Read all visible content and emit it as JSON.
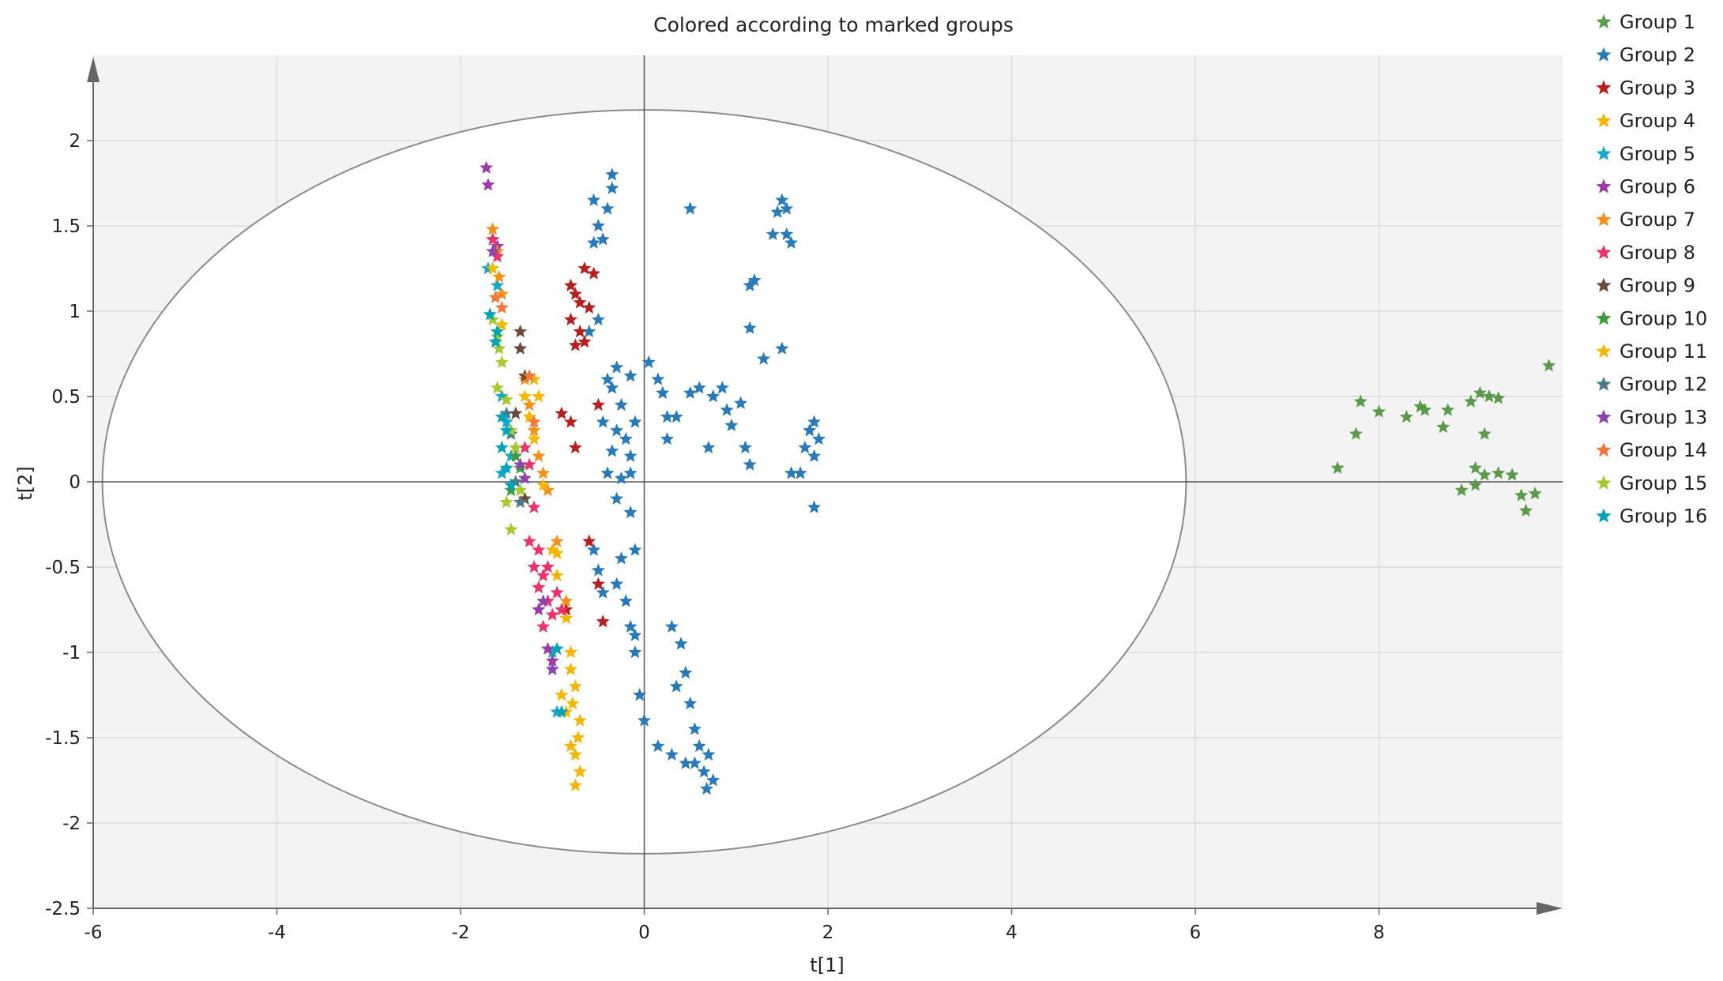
{
  "chart_data": {
    "type": "scatter",
    "title": "Colored according to marked groups",
    "xlabel": "t[1]",
    "ylabel": "t[2]",
    "xlim": [
      -6,
      10
    ],
    "ylim": [
      -2.5,
      2.5
    ],
    "x_ticks": [
      "-6",
      "-4",
      "-2",
      "0",
      "2",
      "4",
      "6",
      "8"
    ],
    "y_ticks": [
      "2",
      "1.5",
      "1",
      "0.5",
      "0",
      "-0.5",
      "-1",
      "-1.5",
      "-2",
      "-2.5"
    ],
    "grid": true,
    "legend_position": "right",
    "ellipse": {
      "center": [
        0,
        0
      ],
      "rx": 5.9,
      "ry": 2.18
    },
    "series": [
      {
        "name": "Group 1",
        "color": "#5a9a4a",
        "points": [
          [
            7.55,
            0.08
          ],
          [
            7.75,
            0.28
          ],
          [
            7.8,
            0.47
          ],
          [
            8.0,
            0.41
          ],
          [
            8.3,
            0.38
          ],
          [
            8.45,
            0.44
          ],
          [
            8.5,
            0.42
          ],
          [
            8.75,
            0.42
          ],
          [
            8.7,
            0.32
          ],
          [
            9.0,
            0.47
          ],
          [
            9.1,
            0.52
          ],
          [
            9.2,
            0.5
          ],
          [
            9.3,
            0.49
          ],
          [
            9.15,
            0.28
          ],
          [
            9.05,
            0.08
          ],
          [
            9.15,
            0.04
          ],
          [
            9.3,
            0.05
          ],
          [
            9.45,
            0.04
          ],
          [
            8.9,
            -0.05
          ],
          [
            9.05,
            -0.02
          ],
          [
            9.55,
            -0.08
          ],
          [
            9.7,
            -0.07
          ],
          [
            9.6,
            -0.17
          ],
          [
            9.85,
            0.68
          ]
        ]
      },
      {
        "name": "Group 2",
        "color": "#2a7ab8",
        "points": [
          [
            -0.35,
            1.8
          ],
          [
            -0.35,
            1.72
          ],
          [
            -0.55,
            1.65
          ],
          [
            -0.4,
            1.6
          ],
          [
            -0.5,
            1.5
          ],
          [
            -0.55,
            1.4
          ],
          [
            -0.45,
            1.42
          ],
          [
            -0.6,
            0.88
          ],
          [
            -0.5,
            0.95
          ],
          [
            -0.4,
            0.6
          ],
          [
            -0.3,
            0.67
          ],
          [
            -0.15,
            0.62
          ],
          [
            -0.35,
            0.55
          ],
          [
            -0.25,
            0.45
          ],
          [
            -0.45,
            0.35
          ],
          [
            -0.3,
            0.3
          ],
          [
            -0.1,
            0.35
          ],
          [
            -0.2,
            0.25
          ],
          [
            -0.35,
            0.18
          ],
          [
            -0.15,
            0.15
          ],
          [
            -0.4,
            0.05
          ],
          [
            -0.25,
            0.02
          ],
          [
            -0.15,
            0.05
          ],
          [
            -0.3,
            -0.1
          ],
          [
            -0.15,
            -0.18
          ],
          [
            -0.25,
            -0.45
          ],
          [
            -0.1,
            -0.4
          ],
          [
            -0.55,
            -0.4
          ],
          [
            -0.5,
            -0.52
          ],
          [
            -0.45,
            -0.65
          ],
          [
            -0.3,
            -0.6
          ],
          [
            -0.2,
            -0.7
          ],
          [
            -0.15,
            -0.85
          ],
          [
            0.05,
            0.7
          ],
          [
            0.15,
            0.6
          ],
          [
            0.2,
            0.52
          ],
          [
            0.25,
            0.38
          ],
          [
            0.35,
            0.38
          ],
          [
            0.25,
            0.25
          ],
          [
            0.5,
            0.52
          ],
          [
            0.6,
            0.55
          ],
          [
            0.75,
            0.5
          ],
          [
            0.85,
            0.55
          ],
          [
            0.9,
            0.42
          ],
          [
            1.05,
            0.46
          ],
          [
            0.95,
            0.33
          ],
          [
            1.1,
            0.2
          ],
          [
            1.15,
            0.1
          ],
          [
            0.7,
            0.2
          ],
          [
            0.5,
            1.6
          ],
          [
            1.15,
            1.15
          ],
          [
            1.2,
            1.18
          ],
          [
            1.15,
            0.9
          ],
          [
            1.3,
            0.72
          ],
          [
            1.5,
            1.65
          ],
          [
            1.45,
            1.58
          ],
          [
            1.55,
            1.6
          ],
          [
            1.4,
            1.45
          ],
          [
            1.55,
            1.45
          ],
          [
            1.6,
            1.4
          ],
          [
            1.5,
            0.78
          ],
          [
            1.6,
            0.05
          ],
          [
            1.7,
            0.05
          ],
          [
            1.85,
            0.35
          ],
          [
            1.8,
            0.3
          ],
          [
            1.75,
            0.2
          ],
          [
            1.85,
            0.15
          ],
          [
            1.9,
            0.25
          ],
          [
            1.85,
            -0.15
          ],
          [
            0.3,
            -0.85
          ],
          [
            0.4,
            -0.95
          ],
          [
            0.45,
            -1.12
          ],
          [
            0.35,
            -1.2
          ],
          [
            0.5,
            -1.3
          ],
          [
            0.55,
            -1.45
          ],
          [
            0.6,
            -1.55
          ],
          [
            0.7,
            -1.6
          ],
          [
            0.65,
            -1.7
          ],
          [
            0.75,
            -1.75
          ],
          [
            0.68,
            -1.8
          ],
          [
            0.55,
            -1.65
          ],
          [
            0.45,
            -1.65
          ],
          [
            0.3,
            -1.6
          ],
          [
            0.15,
            -1.55
          ],
          [
            0.0,
            -1.4
          ],
          [
            -0.05,
            -1.25
          ],
          [
            -0.1,
            -1.0
          ],
          [
            -0.1,
            -0.9
          ]
        ]
      },
      {
        "name": "Group 3",
        "color": "#b52020",
        "points": [
          [
            -0.65,
            1.25
          ],
          [
            -0.55,
            1.22
          ],
          [
            -0.75,
            1.1
          ],
          [
            -0.7,
            1.05
          ],
          [
            -0.8,
            1.15
          ],
          [
            -0.6,
            1.02
          ],
          [
            -0.8,
            0.95
          ],
          [
            -0.7,
            0.88
          ],
          [
            -0.75,
            0.8
          ],
          [
            -0.65,
            0.82
          ],
          [
            -0.9,
            0.4
          ],
          [
            -0.8,
            0.35
          ],
          [
            -0.75,
            0.2
          ],
          [
            -0.5,
            0.45
          ],
          [
            -0.6,
            -0.35
          ],
          [
            -0.5,
            -0.6
          ],
          [
            -0.45,
            -0.82
          ],
          [
            -0.85,
            -0.75
          ]
        ]
      },
      {
        "name": "Group 4",
        "color": "#f2b705",
        "points": [
          [
            -1.2,
            0.6
          ],
          [
            -1.15,
            0.5
          ],
          [
            -1.0,
            -0.4
          ],
          [
            -0.95,
            -0.55
          ],
          [
            -0.85,
            -0.8
          ],
          [
            -0.8,
            -1.0
          ],
          [
            -0.8,
            -1.1
          ],
          [
            -0.75,
            -1.2
          ],
          [
            -0.78,
            -1.3
          ],
          [
            -0.7,
            -1.4
          ],
          [
            -0.72,
            -1.5
          ],
          [
            -0.75,
            -1.6
          ],
          [
            -0.7,
            -1.7
          ],
          [
            -0.75,
            -1.78
          ],
          [
            -0.8,
            -1.55
          ],
          [
            -0.85,
            -1.35
          ],
          [
            -0.9,
            -1.25
          ]
        ]
      },
      {
        "name": "Group 5",
        "color": "#17a8c9",
        "points": [
          [
            -1.7,
            1.25
          ],
          [
            -1.6,
            1.15
          ],
          [
            -1.55,
            0.5
          ],
          [
            -1.5,
            0.35
          ],
          [
            -1.45,
            0.15
          ],
          [
            -1.55,
            0.05
          ],
          [
            -1.0,
            -1.0
          ],
          [
            -0.95,
            -1.35
          ]
        ]
      },
      {
        "name": "Group 6",
        "color": "#9b3ba8",
        "points": [
          [
            -1.72,
            1.84
          ],
          [
            -1.7,
            1.74
          ],
          [
            -1.65,
            1.42
          ],
          [
            -1.6,
            1.38
          ],
          [
            -1.15,
            -0.75
          ],
          [
            -1.05,
            -0.98
          ],
          [
            -1.0,
            -1.05
          ]
        ]
      },
      {
        "name": "Group 7",
        "color": "#f39019",
        "points": [
          [
            -1.65,
            1.48
          ],
          [
            -1.6,
            1.35
          ],
          [
            -1.58,
            1.2
          ],
          [
            -1.55,
            1.1
          ],
          [
            -1.3,
            0.6
          ],
          [
            -1.25,
            0.45
          ],
          [
            -1.2,
            0.3
          ],
          [
            -1.15,
            0.15
          ],
          [
            -1.1,
            0.05
          ],
          [
            -1.05,
            -0.05
          ],
          [
            -0.95,
            -0.35
          ],
          [
            -0.85,
            -0.7
          ]
        ]
      },
      {
        "name": "Group 8",
        "color": "#e8336d",
        "points": [
          [
            -1.65,
            1.42
          ],
          [
            -1.6,
            1.32
          ],
          [
            -1.3,
            0.2
          ],
          [
            -1.25,
            0.1
          ],
          [
            -1.2,
            -0.15
          ],
          [
            -1.25,
            -0.35
          ],
          [
            -1.15,
            -0.4
          ],
          [
            -1.2,
            -0.5
          ],
          [
            -1.1,
            -0.55
          ],
          [
            -1.05,
            -0.5
          ],
          [
            -1.15,
            -0.62
          ],
          [
            -1.05,
            -0.7
          ],
          [
            -1.0,
            -0.78
          ],
          [
            -1.1,
            -0.85
          ],
          [
            -0.95,
            -0.65
          ],
          [
            -0.9,
            -0.75
          ]
        ]
      },
      {
        "name": "Group 9",
        "color": "#6b4a3a",
        "points": [
          [
            -1.35,
            0.88
          ],
          [
            -1.35,
            0.78
          ],
          [
            -1.3,
            0.62
          ],
          [
            -1.4,
            0.4
          ],
          [
            -1.3,
            -0.1
          ]
        ]
      },
      {
        "name": "Group 10",
        "color": "#3f9a3f",
        "points": [
          [
            -1.45,
            0.28
          ],
          [
            -1.4,
            0.15
          ],
          [
            -1.35,
            0.08
          ],
          [
            -1.45,
            -0.05
          ]
        ]
      },
      {
        "name": "Group 11",
        "color": "#f5b800",
        "points": [
          [
            -1.65,
            1.25
          ],
          [
            -1.55,
            0.92
          ],
          [
            -1.3,
            0.5
          ],
          [
            -1.25,
            0.38
          ],
          [
            -1.2,
            0.25
          ],
          [
            -1.1,
            -0.02
          ],
          [
            -0.95,
            -0.42
          ]
        ]
      },
      {
        "name": "Group 12",
        "color": "#4d7a88",
        "points": [
          [
            -1.5,
            0.4
          ],
          [
            -1.45,
            0.28
          ],
          [
            -1.4,
            0.0
          ],
          [
            -1.35,
            -0.12
          ]
        ]
      },
      {
        "name": "Group 13",
        "color": "#8e44ad",
        "points": [
          [
            -1.65,
            1.35
          ],
          [
            -1.35,
            0.1
          ],
          [
            -1.3,
            0.02
          ],
          [
            -1.1,
            -0.7
          ],
          [
            -1.0,
            -1.1
          ]
        ]
      },
      {
        "name": "Group 14",
        "color": "#f07838",
        "points": [
          [
            -1.62,
            1.08
          ],
          [
            -1.55,
            1.02
          ],
          [
            -1.25,
            0.62
          ],
          [
            -1.2,
            0.35
          ]
        ]
      },
      {
        "name": "Group 15",
        "color": "#a8c830",
        "points": [
          [
            -1.65,
            0.95
          ],
          [
            -1.6,
            0.85
          ],
          [
            -1.58,
            0.78
          ],
          [
            -1.55,
            0.7
          ],
          [
            -1.6,
            0.55
          ],
          [
            -1.5,
            0.48
          ],
          [
            -1.45,
            0.3
          ],
          [
            -1.4,
            0.2
          ],
          [
            -1.5,
            -0.12
          ],
          [
            -1.45,
            -0.28
          ],
          [
            -1.35,
            -0.05
          ]
        ]
      },
      {
        "name": "Group 16",
        "color": "#00a3b4",
        "points": [
          [
            -1.68,
            0.98
          ],
          [
            -1.6,
            0.88
          ],
          [
            -1.62,
            0.82
          ],
          [
            -1.55,
            0.38
          ],
          [
            -1.5,
            0.3
          ],
          [
            -1.55,
            0.2
          ],
          [
            -1.5,
            0.08
          ],
          [
            -1.45,
            -0.02
          ],
          [
            -0.95,
            -0.98
          ],
          [
            -0.9,
            -1.35
          ]
        ]
      }
    ]
  }
}
